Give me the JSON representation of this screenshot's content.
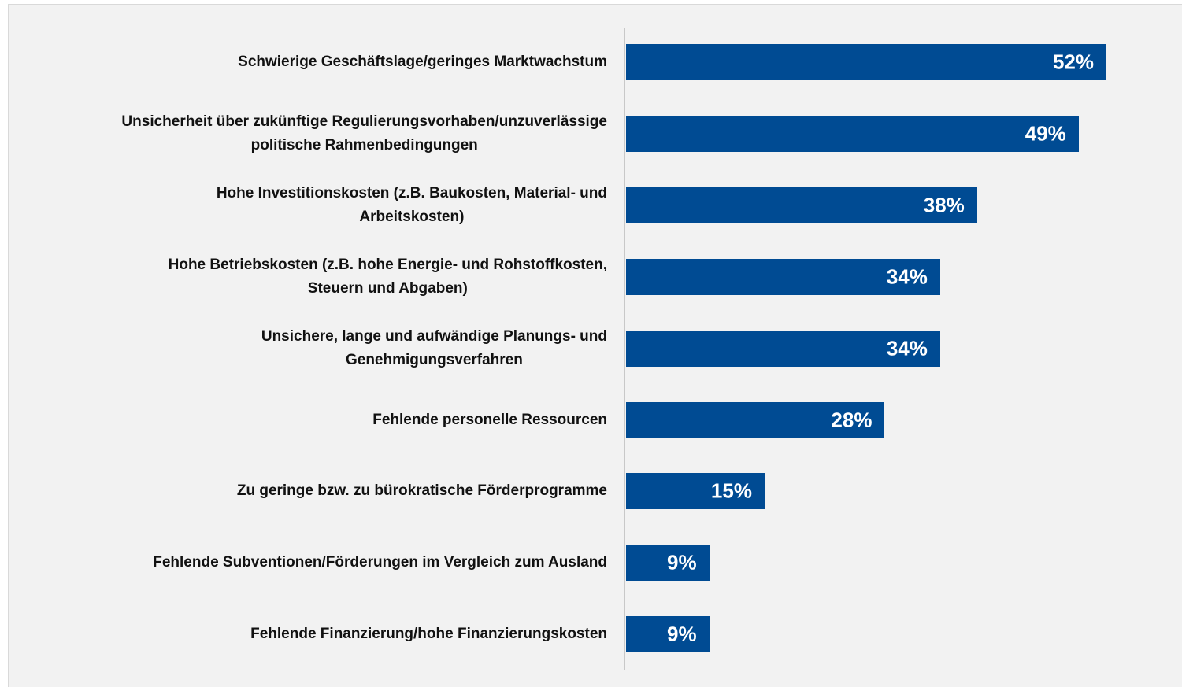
{
  "chart_data": {
    "type": "bar",
    "orientation": "horizontal",
    "categories": [
      "Schwierige Geschäftslage/geringes Marktwachstum",
      "Unsicherheit über zukünftige Regulierungsvorhaben/unzuverlässige\npolitische Rahmenbedingungen",
      "Hohe Investitionskosten (z.B. Baukosten, Material- und\nArbeitskosten)",
      "Hohe Betriebskosten (z.B. hohe Energie- und Rohstoffkosten,\nSteuern und Abgaben)",
      "Unsichere, lange und aufwändige Planungs- und\nGenehmigungsverfahren",
      "Fehlende personelle Ressourcen",
      "Zu geringe bzw. zu bürokratische Förderprogramme",
      "Fehlende Subventionen/Förderungen im Vergleich zum Ausland",
      "Fehlende Finanzierung/hohe Finanzierungskosten"
    ],
    "values": [
      52,
      49,
      38,
      34,
      34,
      28,
      15,
      9,
      9
    ],
    "value_labels": [
      "52%",
      "49%",
      "38%",
      "34%",
      "34%",
      "28%",
      "15%",
      "9%",
      "9%"
    ],
    "color": "#004b93"
  }
}
